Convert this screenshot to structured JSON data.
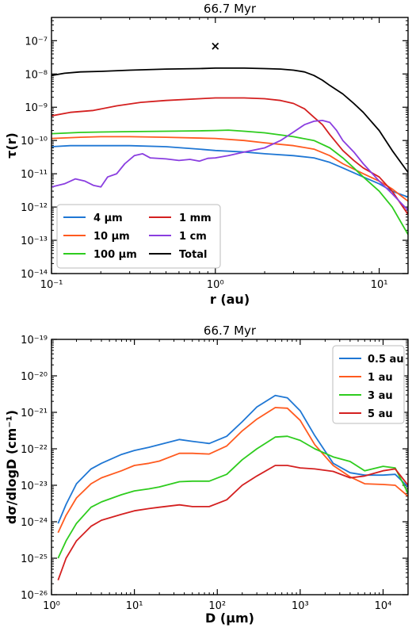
{
  "chart_data": [
    {
      "type": "line",
      "title": "66.7 Myr",
      "xlabel": "r (au)",
      "ylabel": "τ(r)",
      "xscale": "log",
      "yscale": "log",
      "xlim": [
        0.1,
        15
      ],
      "ylim": [
        1e-14,
        5e-07
      ],
      "xticks": [
        {
          "v": 0.1,
          "label": "10⁻¹"
        },
        {
          "v": 1,
          "label": "10⁰"
        },
        {
          "v": 10,
          "label": "10¹"
        }
      ],
      "yticks": [
        {
          "v": 1e-14,
          "label": "10⁻¹⁴"
        },
        {
          "v": 1e-13,
          "label": "10⁻¹³"
        },
        {
          "v": 1e-12,
          "label": "10⁻¹²"
        },
        {
          "v": 1e-11,
          "label": "10⁻¹¹"
        },
        {
          "v": 1e-10,
          "label": "10⁻¹⁰"
        },
        {
          "v": 1e-09,
          "label": "10⁻⁹"
        },
        {
          "v": 1e-08,
          "label": "10⁻⁸"
        },
        {
          "v": 1e-07,
          "label": "10⁻⁷"
        }
      ],
      "legend": {
        "position": "lower-left",
        "columns": 2
      },
      "series": [
        {
          "name": "4 μm",
          "color": "#1f77d4",
          "points": [
            [
              0.1,
              6.5e-11
            ],
            [
              0.13,
              7e-11
            ],
            [
              0.2,
              7e-11
            ],
            [
              0.3,
              7e-11
            ],
            [
              0.5,
              6.5e-11
            ],
            [
              0.8,
              5.5e-11
            ],
            [
              1,
              5e-11
            ],
            [
              1.5,
              4.5e-11
            ],
            [
              2,
              4e-11
            ],
            [
              3,
              3.5e-11
            ],
            [
              4,
              3e-11
            ],
            [
              5,
              2.2e-11
            ],
            [
              6,
              1.5e-11
            ],
            [
              8,
              8e-12
            ],
            [
              10,
              5e-12
            ],
            [
              12,
              3e-12
            ],
            [
              15,
              2e-12
            ]
          ]
        },
        {
          "name": "10 μm",
          "color": "#ff5a1f",
          "points": [
            [
              0.1,
              1.15e-10
            ],
            [
              0.15,
              1.25e-10
            ],
            [
              0.2,
              1.3e-10
            ],
            [
              0.3,
              1.3e-10
            ],
            [
              0.5,
              1.25e-10
            ],
            [
              1,
              1.15e-10
            ],
            [
              1.5,
              1e-10
            ],
            [
              2,
              8.5e-11
            ],
            [
              3,
              7e-11
            ],
            [
              4,
              5.5e-11
            ],
            [
              5,
              3.5e-11
            ],
            [
              6,
              2e-11
            ],
            [
              8,
              1e-11
            ],
            [
              10,
              6e-12
            ],
            [
              12,
              3.5e-12
            ],
            [
              15,
              1.5e-12
            ]
          ]
        },
        {
          "name": "100 μm",
          "color": "#2ecc1e",
          "points": [
            [
              0.1,
              1.6e-10
            ],
            [
              0.15,
              1.75e-10
            ],
            [
              0.2,
              1.8e-10
            ],
            [
              0.3,
              1.85e-10
            ],
            [
              0.5,
              1.9e-10
            ],
            [
              0.8,
              1.95e-10
            ],
            [
              1,
              2e-10
            ],
            [
              1.2,
              2.05e-10
            ],
            [
              1.5,
              1.9e-10
            ],
            [
              2,
              1.7e-10
            ],
            [
              3,
              1.3e-10
            ],
            [
              4,
              1e-10
            ],
            [
              5,
              6e-11
            ],
            [
              6,
              3e-11
            ],
            [
              7,
              1.5e-11
            ],
            [
              8,
              8e-12
            ],
            [
              10,
              3e-12
            ],
            [
              12,
              1e-12
            ],
            [
              15,
              1.5e-13
            ]
          ]
        },
        {
          "name": "1 mm",
          "color": "#d42020",
          "points": [
            [
              0.1,
              5.5e-10
            ],
            [
              0.13,
              7e-10
            ],
            [
              0.18,
              8e-10
            ],
            [
              0.25,
              1.1e-09
            ],
            [
              0.35,
              1.4e-09
            ],
            [
              0.5,
              1.6e-09
            ],
            [
              0.8,
              1.8e-09
            ],
            [
              1,
              1.9e-09
            ],
            [
              1.5,
              1.9e-09
            ],
            [
              2,
              1.8e-09
            ],
            [
              2.5,
              1.6e-09
            ],
            [
              3,
              1.3e-09
            ],
            [
              3.5,
              9e-10
            ],
            [
              4,
              5e-10
            ],
            [
              4.5,
              3e-10
            ],
            [
              5,
              1.5e-10
            ],
            [
              6,
              5e-11
            ],
            [
              7,
              2.5e-11
            ],
            [
              8,
              1.5e-11
            ],
            [
              10,
              8e-12
            ],
            [
              12,
              3e-12
            ],
            [
              15,
              6e-13
            ]
          ]
        },
        {
          "name": "1 cm",
          "color": "#8a3ee0",
          "points": [
            [
              0.1,
              4e-12
            ],
            [
              0.12,
              5e-12
            ],
            [
              0.14,
              7e-12
            ],
            [
              0.16,
              6e-12
            ],
            [
              0.18,
              4.5e-12
            ],
            [
              0.2,
              4e-12
            ],
            [
              0.22,
              8e-12
            ],
            [
              0.25,
              1e-11
            ],
            [
              0.28,
              2e-11
            ],
            [
              0.32,
              3.5e-11
            ],
            [
              0.36,
              4e-11
            ],
            [
              0.4,
              3e-11
            ],
            [
              0.5,
              2.8e-11
            ],
            [
              0.6,
              2.5e-11
            ],
            [
              0.7,
              2.7e-11
            ],
            [
              0.8,
              2.4e-11
            ],
            [
              0.9,
              2.9e-11
            ],
            [
              1,
              3e-11
            ],
            [
              1.2,
              3.5e-11
            ],
            [
              1.5,
              4.5e-11
            ],
            [
              2,
              6e-11
            ],
            [
              2.5,
              1e-10
            ],
            [
              3,
              1.8e-10
            ],
            [
              3.5,
              3e-10
            ],
            [
              4,
              3.8e-10
            ],
            [
              4.5,
              4e-10
            ],
            [
              5,
              3.5e-10
            ],
            [
              5.5,
              2e-10
            ],
            [
              6,
              1e-10
            ],
            [
              7,
              4.5e-11
            ],
            [
              8,
              2e-11
            ],
            [
              10,
              6e-12
            ],
            [
              12,
              2.5e-12
            ],
            [
              15,
              8e-13
            ]
          ]
        },
        {
          "name": "Total",
          "color": "#000000",
          "points": [
            [
              0.1,
              9e-09
            ],
            [
              0.12,
              1.05e-08
            ],
            [
              0.15,
              1.15e-08
            ],
            [
              0.2,
              1.2e-08
            ],
            [
              0.3,
              1.3e-08
            ],
            [
              0.5,
              1.4e-08
            ],
            [
              0.8,
              1.45e-08
            ],
            [
              1,
              1.5e-08
            ],
            [
              1.5,
              1.5e-08
            ],
            [
              2,
              1.45e-08
            ],
            [
              2.5,
              1.4e-08
            ],
            [
              3,
              1.3e-08
            ],
            [
              3.5,
              1.15e-08
            ],
            [
              4,
              9e-09
            ],
            [
              4.5,
              6.5e-09
            ],
            [
              5,
              4.5e-09
            ],
            [
              6,
              2.5e-09
            ],
            [
              7,
              1.3e-09
            ],
            [
              8,
              7e-10
            ],
            [
              10,
              2e-10
            ],
            [
              12,
              5e-11
            ],
            [
              15,
              1.1e-11
            ]
          ]
        }
      ],
      "marker": {
        "x": 1.0,
        "y": 7e-08,
        "symbol": "×"
      }
    },
    {
      "type": "line",
      "title": "66.7 Myr",
      "xlabel": "D (μm)",
      "ylabel": "dσ/dlogD (cm⁻¹)",
      "xscale": "log",
      "yscale": "log",
      "xlim": [
        1,
        20000
      ],
      "ylim": [
        1e-26,
        1e-19
      ],
      "xticks": [
        {
          "v": 1,
          "label": "10⁰"
        },
        {
          "v": 10,
          "label": "10¹"
        },
        {
          "v": 100,
          "label": "10²"
        },
        {
          "v": 1000,
          "label": "10³"
        },
        {
          "v": 10000,
          "label": "10⁴"
        }
      ],
      "yticks": [
        {
          "v": 1e-26,
          "label": "10⁻²⁶"
        },
        {
          "v": 1e-25,
          "label": "10⁻²⁵"
        },
        {
          "v": 1e-24,
          "label": "10⁻²⁴"
        },
        {
          "v": 1e-23,
          "label": "10⁻²³"
        },
        {
          "v": 1e-22,
          "label": "10⁻²²"
        },
        {
          "v": 1e-21,
          "label": "10⁻²¹"
        },
        {
          "v": 1e-20,
          "label": "10⁻²⁰"
        },
        {
          "v": 1e-19,
          "label": "10⁻¹⁹"
        }
      ],
      "legend": {
        "position": "top-right",
        "columns": 1
      },
      "series": [
        {
          "name": "0.5 au",
          "color": "#1f77d4",
          "points": [
            [
              1.2,
              9e-25
            ],
            [
              1.5,
              3e-24
            ],
            [
              2,
              1.1e-23
            ],
            [
              3,
              2.8e-23
            ],
            [
              4,
              4e-23
            ],
            [
              7,
              7e-23
            ],
            [
              10,
              9e-23
            ],
            [
              15,
              1.1e-22
            ],
            [
              20,
              1.3e-22
            ],
            [
              35,
              1.8e-22
            ],
            [
              50,
              1.6e-22
            ],
            [
              80,
              1.4e-22
            ],
            [
              130,
              2.2e-22
            ],
            [
              200,
              5.5e-22
            ],
            [
              300,
              1.4e-21
            ],
            [
              500,
              2.9e-21
            ],
            [
              700,
              2.5e-21
            ],
            [
              1000,
              1.1e-21
            ],
            [
              1500,
              2.3e-22
            ],
            [
              2500,
              4e-23
            ],
            [
              4000,
              2.2e-23
            ],
            [
              6000,
              1.9e-23
            ],
            [
              10000,
              1.9e-23
            ],
            [
              14000,
              2e-23
            ],
            [
              20000,
              9e-24
            ]
          ]
        },
        {
          "name": "1 au",
          "color": "#ff5a1f",
          "points": [
            [
              1.2,
              5e-25
            ],
            [
              1.5,
              1.5e-24
            ],
            [
              2,
              4.5e-24
            ],
            [
              3,
              1.1e-23
            ],
            [
              4,
              1.6e-23
            ],
            [
              7,
              2.5e-23
            ],
            [
              10,
              3.5e-23
            ],
            [
              15,
              4e-23
            ],
            [
              20,
              4.6e-23
            ],
            [
              35,
              7.5e-23
            ],
            [
              50,
              7.5e-23
            ],
            [
              80,
              7.2e-23
            ],
            [
              130,
              1.2e-22
            ],
            [
              200,
              3.1e-22
            ],
            [
              300,
              6.5e-22
            ],
            [
              500,
              1.35e-21
            ],
            [
              700,
              1.3e-21
            ],
            [
              1000,
              6e-22
            ],
            [
              1500,
              1.3e-22
            ],
            [
              2500,
              3.5e-23
            ],
            [
              4000,
              1.7e-23
            ],
            [
              6000,
              1.1e-23
            ],
            [
              10000,
              1.05e-23
            ],
            [
              14000,
              1e-23
            ],
            [
              20000,
              5e-24
            ]
          ]
        },
        {
          "name": "3 au",
          "color": "#2ecc1e",
          "points": [
            [
              1.2,
              1e-25
            ],
            [
              1.5,
              3e-25
            ],
            [
              2,
              9e-25
            ],
            [
              3,
              2.5e-24
            ],
            [
              4,
              3.5e-24
            ],
            [
              7,
              5.5e-24
            ],
            [
              10,
              7e-24
            ],
            [
              15,
              8e-24
            ],
            [
              20,
              9e-24
            ],
            [
              35,
              1.25e-23
            ],
            [
              50,
              1.3e-23
            ],
            [
              80,
              1.3e-23
            ],
            [
              130,
              2e-23
            ],
            [
              200,
              5e-23
            ],
            [
              300,
              1e-22
            ],
            [
              500,
              2.1e-22
            ],
            [
              700,
              2.2e-22
            ],
            [
              1000,
              1.7e-22
            ],
            [
              1500,
              1e-22
            ],
            [
              2500,
              6e-23
            ],
            [
              4000,
              4.5e-23
            ],
            [
              6000,
              2.5e-23
            ],
            [
              10000,
              3.3e-23
            ],
            [
              14000,
              3e-23
            ],
            [
              20000,
              6e-24
            ]
          ]
        },
        {
          "name": "5 au",
          "color": "#d42020",
          "points": [
            [
              1.2,
              2.5e-26
            ],
            [
              1.5,
              1e-25
            ],
            [
              2,
              3e-25
            ],
            [
              3,
              7.5e-25
            ],
            [
              4,
              1.1e-24
            ],
            [
              7,
              1.6e-24
            ],
            [
              10,
              2e-24
            ],
            [
              15,
              2.3e-24
            ],
            [
              20,
              2.5e-24
            ],
            [
              35,
              2.9e-24
            ],
            [
              50,
              2.6e-24
            ],
            [
              80,
              2.6e-24
            ],
            [
              130,
              4e-24
            ],
            [
              200,
              1e-23
            ],
            [
              300,
              1.8e-23
            ],
            [
              500,
              3.5e-23
            ],
            [
              700,
              3.5e-23
            ],
            [
              1000,
              3e-23
            ],
            [
              1500,
              2.8e-23
            ],
            [
              2500,
              2.4e-23
            ],
            [
              4000,
              1.6e-23
            ],
            [
              6000,
              1.8e-23
            ],
            [
              10000,
              2.5e-23
            ],
            [
              14000,
              2.8e-23
            ],
            [
              20000,
              1e-23
            ]
          ]
        }
      ]
    }
  ]
}
